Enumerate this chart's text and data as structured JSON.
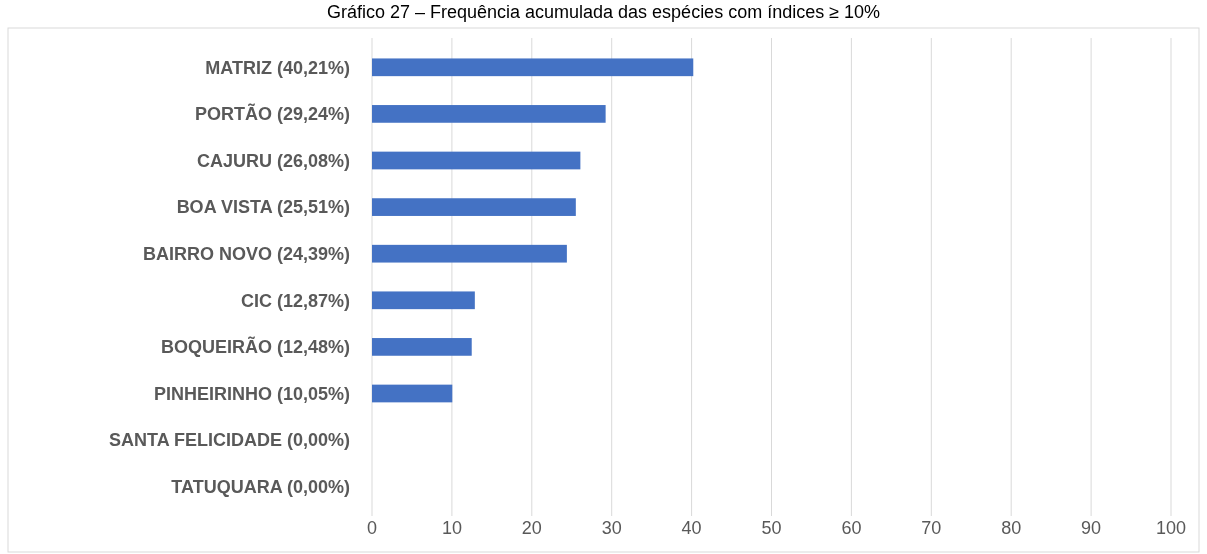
{
  "chart_data": {
    "type": "bar",
    "orientation": "horizontal",
    "title": "Gráfico 27 – Frequência acumulada das espécies com índices ≥ 10%",
    "categories": [
      "MATRIZ (40,21%)",
      "PORTÃO (29,24%)",
      "CAJURU (26,08%)",
      "BOA VISTA (25,51%)",
      "BAIRRO NOVO (24,39%)",
      "CIC (12,87%)",
      "BOQUEIRÃO (12,48%)",
      "PINHEIRINHO (10,05%)",
      "SANTA FELICIDADE (0,00%)",
      "TATUQUARA (0,00%)"
    ],
    "values": [
      40.21,
      29.24,
      26.08,
      25.51,
      24.39,
      12.87,
      12.48,
      10.05,
      0,
      0
    ],
    "color": "#4472c4",
    "xlim": [
      0,
      100
    ],
    "xticks": [
      0,
      10,
      20,
      30,
      40,
      50,
      60,
      70,
      80,
      90,
      100
    ],
    "grid": "x"
  }
}
